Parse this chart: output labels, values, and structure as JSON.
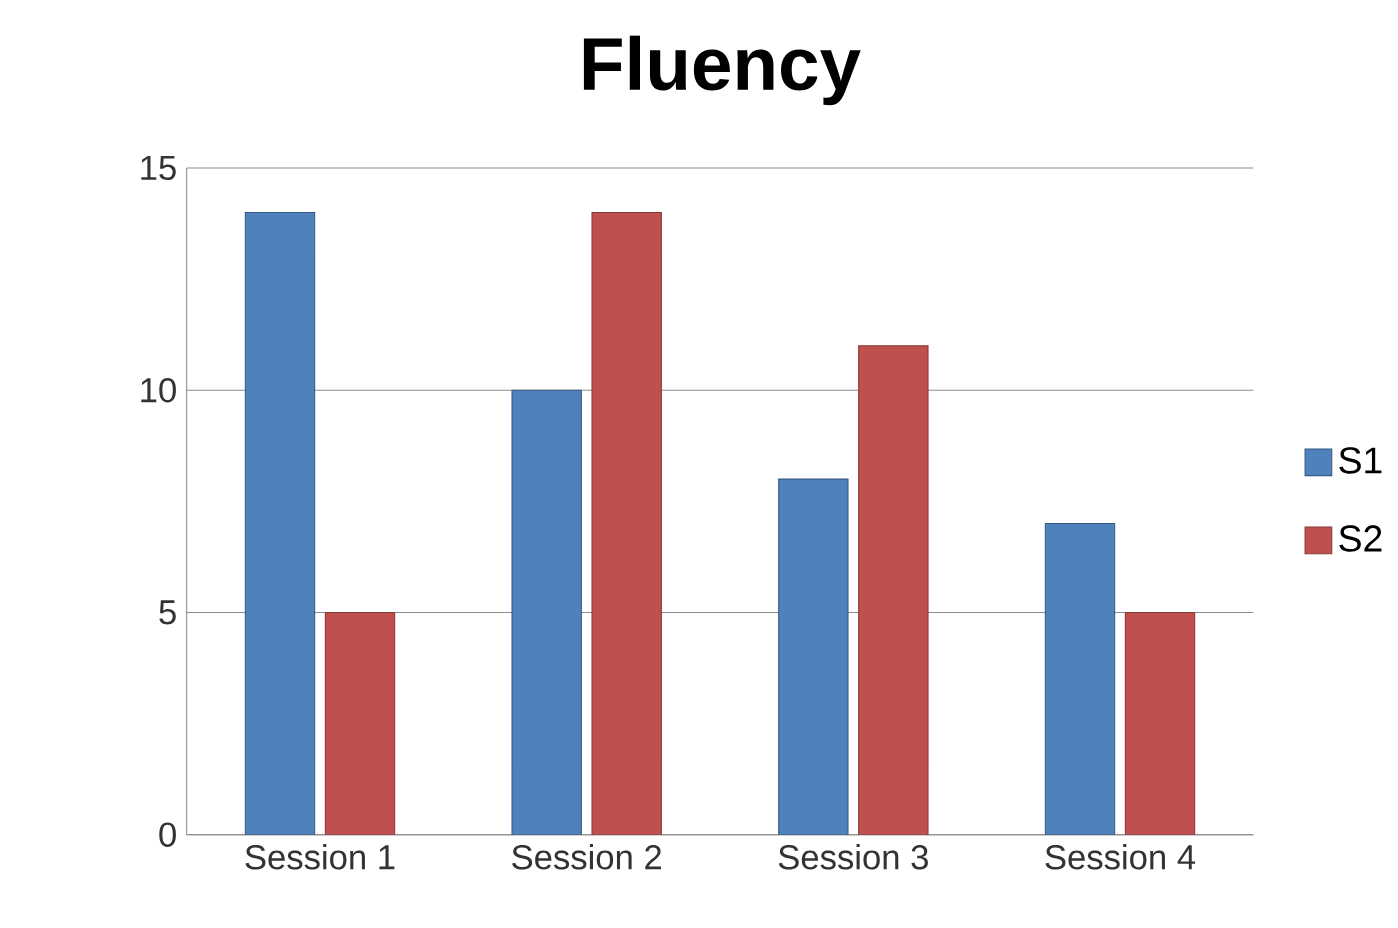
{
  "chart_data": {
    "type": "bar",
    "title": "Fluency",
    "categories": [
      "Session 1",
      "Session 2",
      "Session 3",
      "Session 4"
    ],
    "series": [
      {
        "name": "S1",
        "color": "#4f81bd",
        "values": [
          14,
          10,
          8,
          7
        ]
      },
      {
        "name": "S2",
        "color": "#c0504d",
        "values": [
          5,
          14,
          11,
          5
        ]
      }
    ],
    "ylim": [
      0,
      15
    ],
    "yticks": [
      0,
      5,
      10,
      15
    ],
    "grid": "y",
    "legend": "right"
  }
}
